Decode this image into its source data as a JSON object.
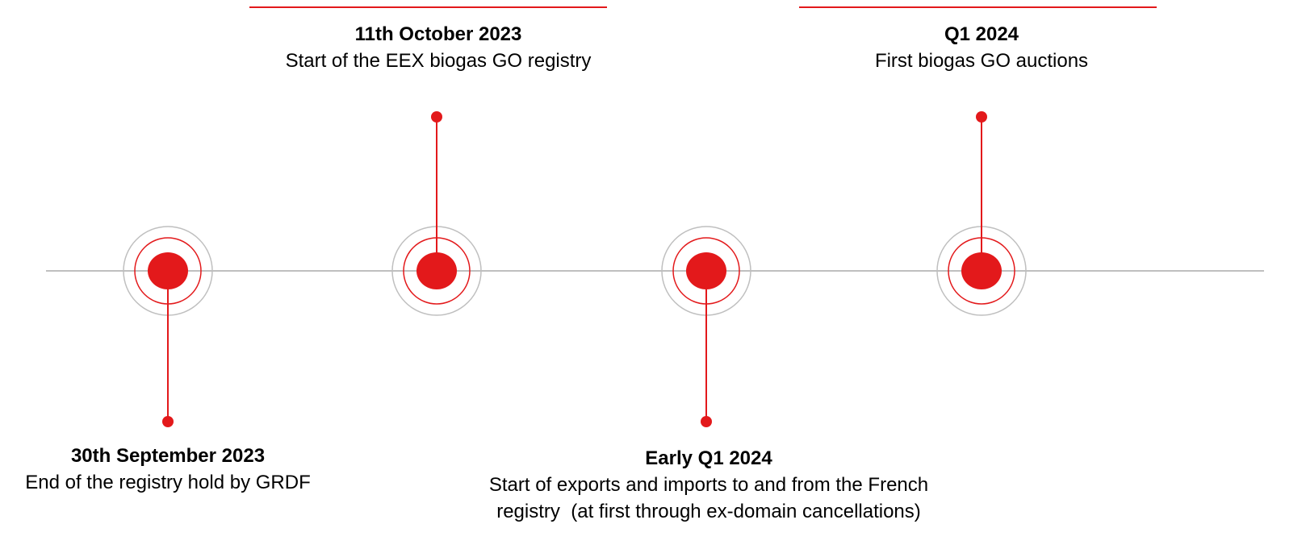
{
  "events": [
    {
      "date": "30th September 2023",
      "description": [
        "End of the registry hold by GRDF"
      ]
    },
    {
      "date": "11th October 2023",
      "description": [
        "Start of the EEX biogas GO registry"
      ]
    },
    {
      "date": "Early Q1 2024",
      "description": [
        "Start of exports and imports to and from the French",
        "registry  (at first through ex-domain cancellations)"
      ]
    },
    {
      "date": "Q1 2024",
      "description": [
        "First biogas GO auctions"
      ]
    }
  ]
}
